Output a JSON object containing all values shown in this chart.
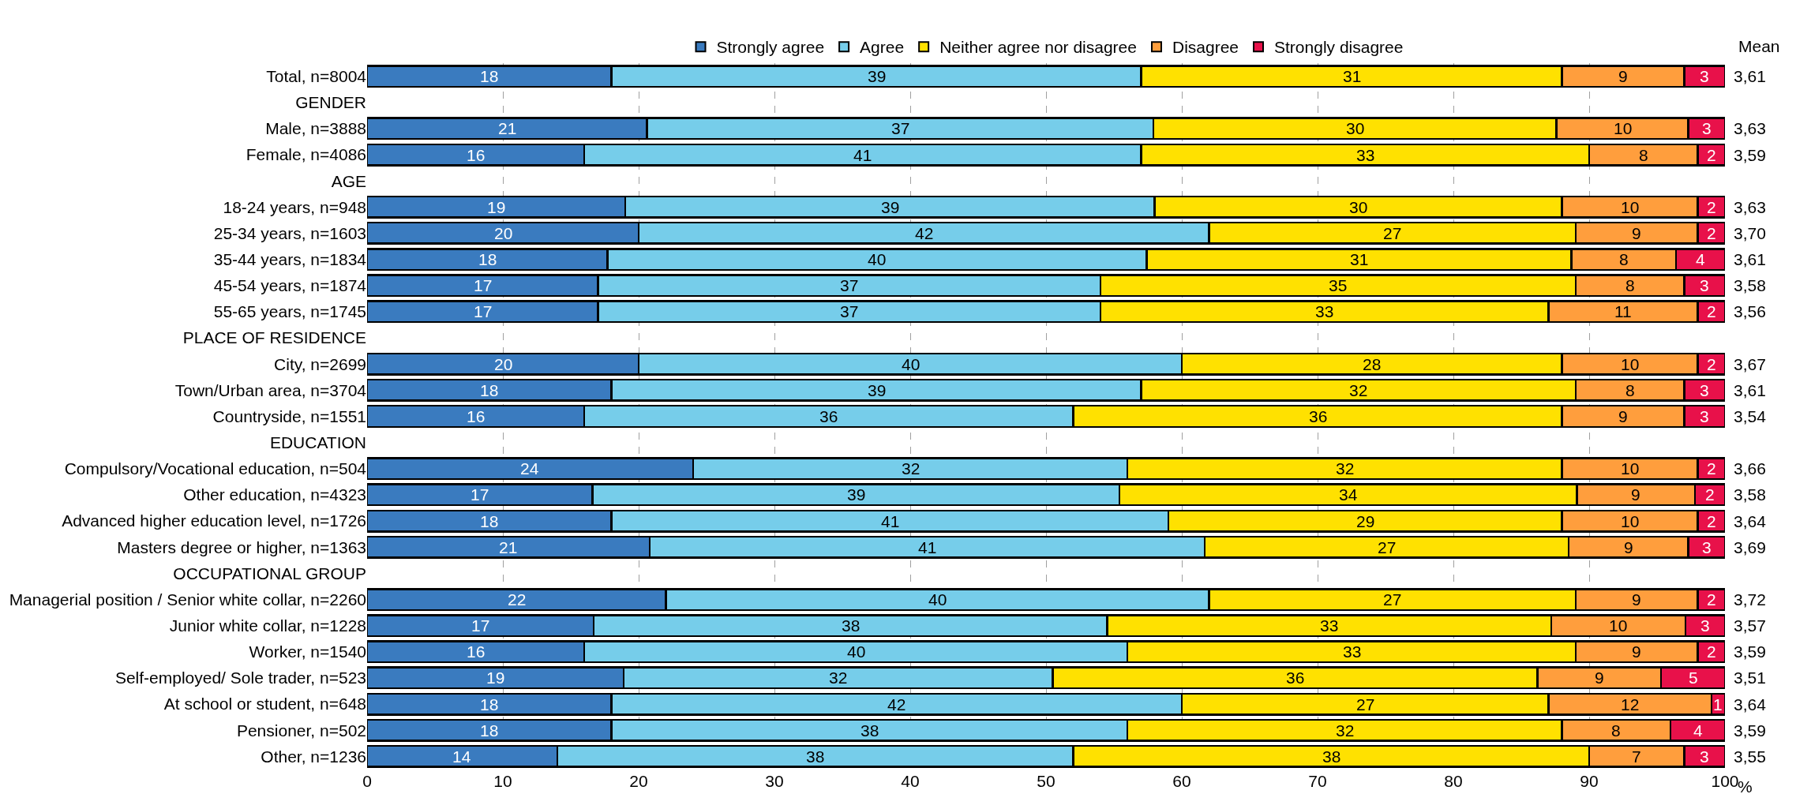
{
  "chart_data": {
    "type": "bar",
    "orientation": "horizontal",
    "stacked": true,
    "xlabel": "%",
    "categories": [
      "Total, n=8004",
      "GENDER",
      "Male, n=3888",
      "Female, n=4086",
      "AGE",
      "18-24 years, n=948",
      "25-34 years, n=1603",
      "35-44 years, n=1834",
      "45-54 years, n=1874",
      "55-65 years, n=1745",
      "PLACE OF RESIDENCE",
      "City, n=2699",
      "Town/Urban area, n=3704",
      "Countryside, n=1551",
      "EDUCATION",
      "Compulsory/Vocational education, n=504",
      "Other education, n=4323",
      "Advanced higher education level, n=1726",
      "Masters degree or higher, n=1363",
      "OCCUPATIONAL GROUP",
      "Managerial position / Senior white collar, n=2260",
      "Junior white collar, n=1228",
      "Worker, n=1540",
      "Self-employed/ Sole trader, n=523",
      "At school or student, n=648",
      "Pensioner, n=502",
      "Other, n=1236"
    ],
    "series": [
      {
        "name": "Strongly agree",
        "color": "#3a7bbf",
        "values": [
          18,
          null,
          20.6,
          16,
          null,
          19,
          20,
          17.7,
          17,
          17,
          null,
          20,
          18,
          16,
          null,
          24,
          16.6,
          18,
          20.8,
          null,
          22,
          16.7,
          16,
          18.9,
          18,
          18,
          14
        ],
        "value_labels": [
          "18",
          null,
          "21",
          "16",
          null,
          "19",
          "20",
          "18",
          "17",
          "17",
          null,
          "20",
          "18",
          "16",
          null,
          "24",
          "17",
          "18",
          "21",
          null,
          "22",
          "17",
          "16",
          "19",
          "18",
          "18",
          "14"
        ]
      },
      {
        "name": "Agree",
        "color": "#76cdea",
        "values": [
          39,
          null,
          37.3,
          41,
          null,
          39,
          42,
          39.7,
          37,
          37,
          null,
          40,
          39,
          36,
          null,
          32,
          38.8,
          41,
          40.9,
          null,
          40,
          37.8,
          40,
          31.6,
          42,
          38,
          38
        ],
        "value_labels": [
          "39",
          null,
          "37",
          "41",
          null,
          "39",
          "42",
          "40",
          "37",
          "37",
          null,
          "40",
          "39",
          "36",
          null,
          "32",
          "39",
          "41",
          "41",
          null,
          "40",
          "38",
          "40",
          "32",
          "42",
          "38",
          "38"
        ]
      },
      {
        "name": "Neither agree nor disagree",
        "color": "#ffe100",
        "values": [
          31,
          null,
          29.7,
          33,
          null,
          30,
          27,
          31.3,
          35,
          33,
          null,
          28,
          32,
          36,
          null,
          32,
          33.7,
          29,
          26.8,
          null,
          27,
          32.7,
          33,
          35.7,
          27,
          32,
          38
        ],
        "value_labels": [
          "31",
          null,
          "30",
          "33",
          null,
          "30",
          "27",
          "31",
          "35",
          "33",
          null,
          "28",
          "32",
          "36",
          null,
          "32",
          "34",
          "29",
          "27",
          null,
          "27",
          "33",
          "33",
          "36",
          "27",
          "32",
          "38"
        ]
      },
      {
        "name": "Disagree",
        "color": "#ff9e3d",
        "values": [
          9,
          null,
          9.7,
          8,
          null,
          10,
          9,
          7.7,
          8,
          11,
          null,
          10,
          8,
          9,
          null,
          10,
          8.7,
          10,
          8.8,
          null,
          9,
          9.9,
          9,
          9.1,
          12,
          8,
          7
        ],
        "value_labels": [
          "9",
          null,
          "10",
          "8",
          null,
          "10",
          "9",
          "8",
          "8",
          "11",
          null,
          "10",
          "8",
          "9",
          null,
          "10",
          "9",
          "10",
          "9",
          null,
          "9",
          "10",
          "9",
          "9",
          "12",
          "8",
          "7"
        ]
      },
      {
        "name": "Strongly disagree",
        "color": "#e8114a",
        "values": [
          3,
          null,
          2.7,
          2,
          null,
          2,
          2,
          3.6,
          3,
          2,
          null,
          2,
          3,
          3,
          null,
          2,
          2.2,
          2,
          2.7,
          null,
          2,
          2.9,
          2,
          4.7,
          1,
          4,
          3
        ],
        "value_labels": [
          "3",
          null,
          "3",
          "2",
          null,
          "2",
          "2",
          "4",
          "3",
          "2",
          null,
          "2",
          "3",
          "3",
          null,
          "2",
          "2",
          "2",
          "3",
          null,
          "2",
          "3",
          "2",
          "5",
          "1",
          "4",
          "3"
        ]
      }
    ],
    "annotations": [
      "Mean",
      "3,61",
      "3,63",
      "3,59",
      "3,63",
      "3,70",
      "3,61",
      "3,58",
      "3,56",
      "3,67",
      "3,61",
      "3,54",
      "3,66",
      "3,58",
      "3,64",
      "3,69",
      "3,72",
      "3,57",
      "3,59",
      "3,51",
      "3,64",
      "3,59",
      "3,55"
    ],
    "xlim": [
      0,
      100
    ],
    "xticks": [
      0,
      10,
      20,
      30,
      40,
      50,
      60,
      70,
      80,
      90,
      100
    ],
    "grid": "x",
    "legend": "top"
  }
}
